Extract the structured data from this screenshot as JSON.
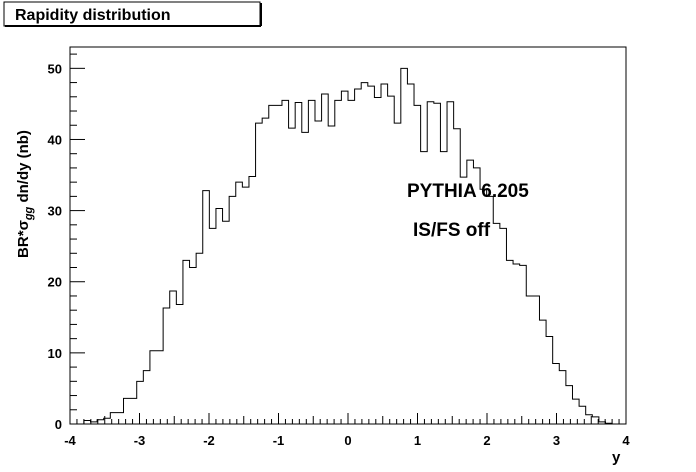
{
  "chart_data": {
    "type": "bar",
    "title": "Rapidity distribution",
    "xlabel": "y",
    "ylabel_main": "BR*σ",
    "ylabel_sub": "gg",
    "ylabel_rest": " dn/dy (nb)",
    "xlim": [
      -4,
      4
    ],
    "ylim": [
      0,
      53
    ],
    "xticks": [
      -4,
      -3,
      -2,
      -1,
      0,
      1,
      2,
      3,
      4
    ],
    "yticks": [
      0,
      10,
      20,
      30,
      40,
      50
    ],
    "grid": false,
    "legend": "none",
    "bin_edges": [
      -3.8,
      3.8
    ],
    "values": [
      0.5,
      0.3,
      0.6,
      0.8,
      1.6,
      1.6,
      3.6,
      3.6,
      6.0,
      7.5,
      10.3,
      10.3,
      16.3,
      18.7,
      16.8,
      23.0,
      22.0,
      24.0,
      32.8,
      27.5,
      30.3,
      28.5,
      32.0,
      34.0,
      33.3,
      34.8,
      42.3,
      43.0,
      44.8,
      44.8,
      45.5,
      41.6,
      45.2,
      41.0,
      45.5,
      42.6,
      46.4,
      41.9,
      45.5,
      46.8,
      45.5,
      47.1,
      48.0,
      47.5,
      45.9,
      47.8,
      46.1,
      42.3,
      50.0,
      47.8,
      44.8,
      38.3,
      45.3,
      45.1,
      38.3,
      45.3,
      41.5,
      34.7,
      37.1,
      36.0,
      33.0,
      32.0,
      28.2,
      27.5,
      23.0,
      22.5,
      22.3,
      18.0,
      18.0,
      14.6,
      12.3,
      8.5,
      7.5,
      5.4,
      3.5,
      2.5,
      1.3,
      1.0,
      0.3,
      0.1
    ],
    "annotations": [
      "PYTHIA 6.205",
      "IS/FS off"
    ]
  }
}
